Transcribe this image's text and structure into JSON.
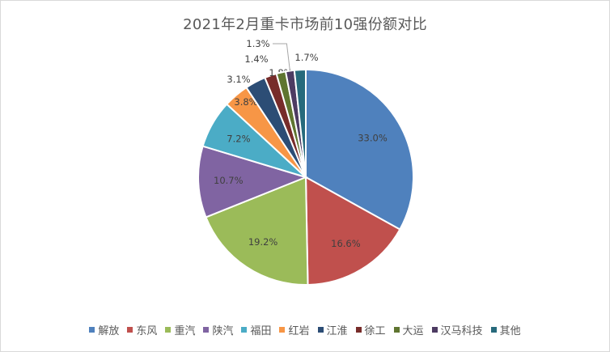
{
  "chart_data": {
    "type": "pie",
    "title": "2021年2月重卡市场前10强份额对比",
    "categories": [
      "解放",
      "东风",
      "重汽",
      "陕汽",
      "福田",
      "红岩",
      "江淮",
      "徐工",
      "大运",
      "汉马科技",
      "其他"
    ],
    "values": [
      33.0,
      16.6,
      19.2,
      10.7,
      7.2,
      3.8,
      3.1,
      1.8,
      1.4,
      1.3,
      1.7
    ],
    "labels": [
      "33.0%",
      "16.6%",
      "19.2%",
      "10.7%",
      "7.2%",
      "3.8%",
      "3.1%",
      "1.8%",
      "1.4%",
      "1.3%",
      "1.7%"
    ],
    "colors": [
      "#4f81bd",
      "#c0504d",
      "#9bbb59",
      "#8064a2",
      "#4bacc6",
      "#f79646",
      "#2c4d75",
      "#772c2a",
      "#5f7530",
      "#4d3b62",
      "#276a7c"
    ],
    "legend_position": "bottom"
  }
}
